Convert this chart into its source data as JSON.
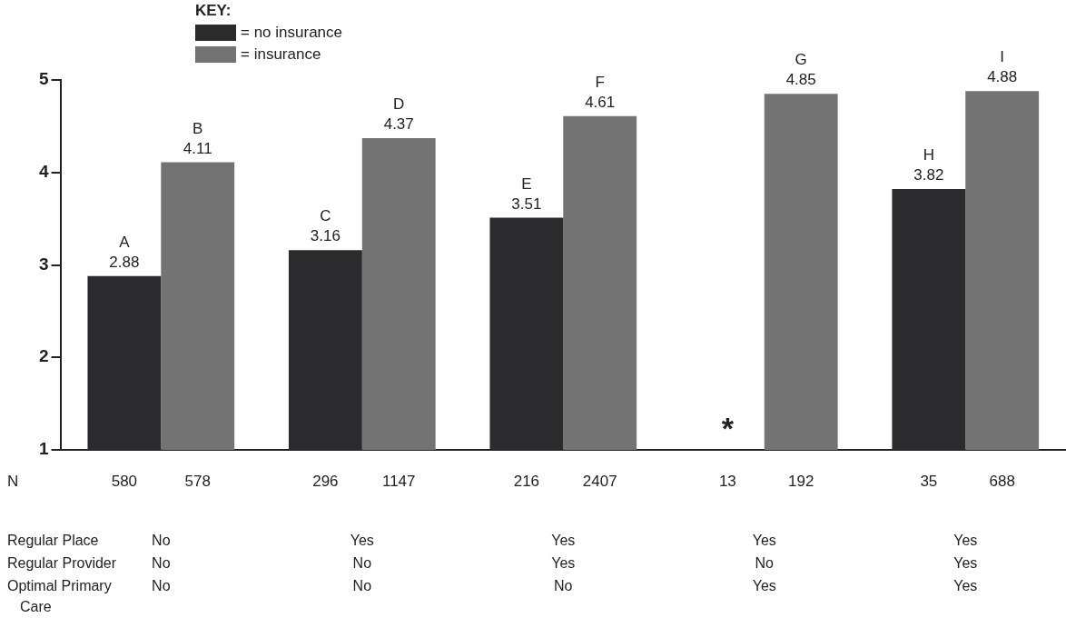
{
  "chart_data": {
    "type": "bar",
    "categories": [
      null,
      null,
      null,
      null,
      null
    ],
    "series": [
      {
        "name": "= no insurance",
        "color": "#2b2a2c",
        "values": [
          2.88,
          3.16,
          3.51,
          null,
          3.82
        ],
        "value_labels": [
          "A\n2.88",
          "C\n3.16",
          "E\n3.51",
          null,
          "H\n3.82"
        ]
      },
      {
        "name": "= insurance",
        "color": "#737373",
        "values": [
          4.11,
          4.37,
          4.61,
          4.85,
          4.88
        ],
        "value_labels": [
          "B\n4.11",
          "D\n4.37",
          "F\n4.61",
          "G\n4.85",
          "I\n4.88"
        ]
      }
    ],
    "ylim": [
      1,
      5
    ],
    "yticks": [
      1,
      2,
      3,
      4,
      5
    ],
    "grid": false,
    "legend": "top left",
    "legend_title": "KEY:",
    "annotations": [
      "N",
      "580",
      "578",
      "296",
      "1147",
      "216",
      "2407",
      "13",
      "192",
      "35",
      "688",
      "*",
      "Regular Place",
      "No",
      "Yes",
      "Yes",
      "Yes",
      "Yes",
      "Regular Provider",
      "No",
      "No",
      "Yes",
      "No",
      "Yes",
      "Optimal Primary Care",
      "No",
      "No",
      "No",
      "Yes",
      "Yes"
    ]
  }
}
